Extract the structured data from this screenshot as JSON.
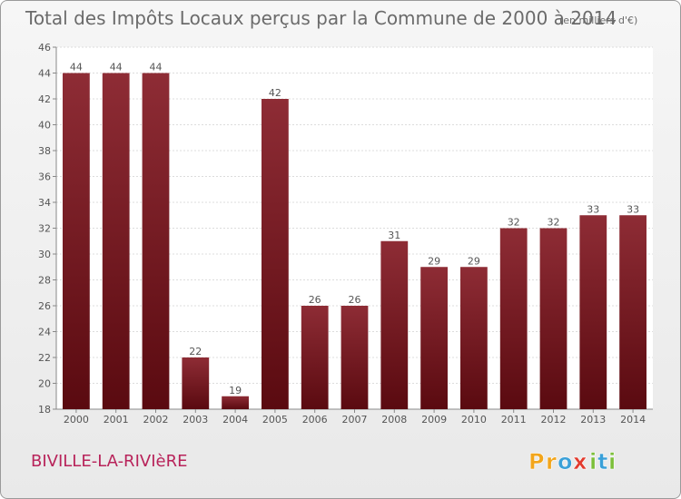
{
  "chart_data": {
    "type": "bar",
    "title": "Total des Impôts Locaux perçus par la Commune de 2000 à 2014",
    "subtitle": "(en milliers d'€)",
    "categories": [
      "2000",
      "2001",
      "2002",
      "2003",
      "2004",
      "2005",
      "2006",
      "2007",
      "2008",
      "2009",
      "2010",
      "2011",
      "2012",
      "2013",
      "2014"
    ],
    "values": [
      44,
      44,
      44,
      22,
      19,
      42,
      26,
      26,
      31,
      29,
      29,
      32,
      32,
      33,
      33
    ],
    "xlabel": "",
    "ylabel": "",
    "ylim": [
      18,
      46
    ],
    "yticks": [
      18,
      20,
      22,
      24,
      26,
      28,
      30,
      32,
      34,
      36,
      38,
      40,
      42,
      44,
      46
    ],
    "grid": true,
    "bar_color": "#7a1a22",
    "label_color": "#555555"
  },
  "commune": "BIVILLE-LA-RIVIèRE",
  "commune_color": "#b8235a",
  "logo": {
    "text": "Proxiti",
    "letters": [
      {
        "ch": "P",
        "color": "#f2a51b"
      },
      {
        "ch": "r",
        "color": "#f2a51b"
      },
      {
        "ch": "o",
        "color": "#3aa0d8"
      },
      {
        "ch": "x",
        "color": "#e23b2e"
      },
      {
        "ch": "i",
        "color": "#7cbf3a"
      },
      {
        "ch": "t",
        "color": "#3aa0d8"
      },
      {
        "ch": "i",
        "color": "#7cbf3a"
      }
    ]
  }
}
